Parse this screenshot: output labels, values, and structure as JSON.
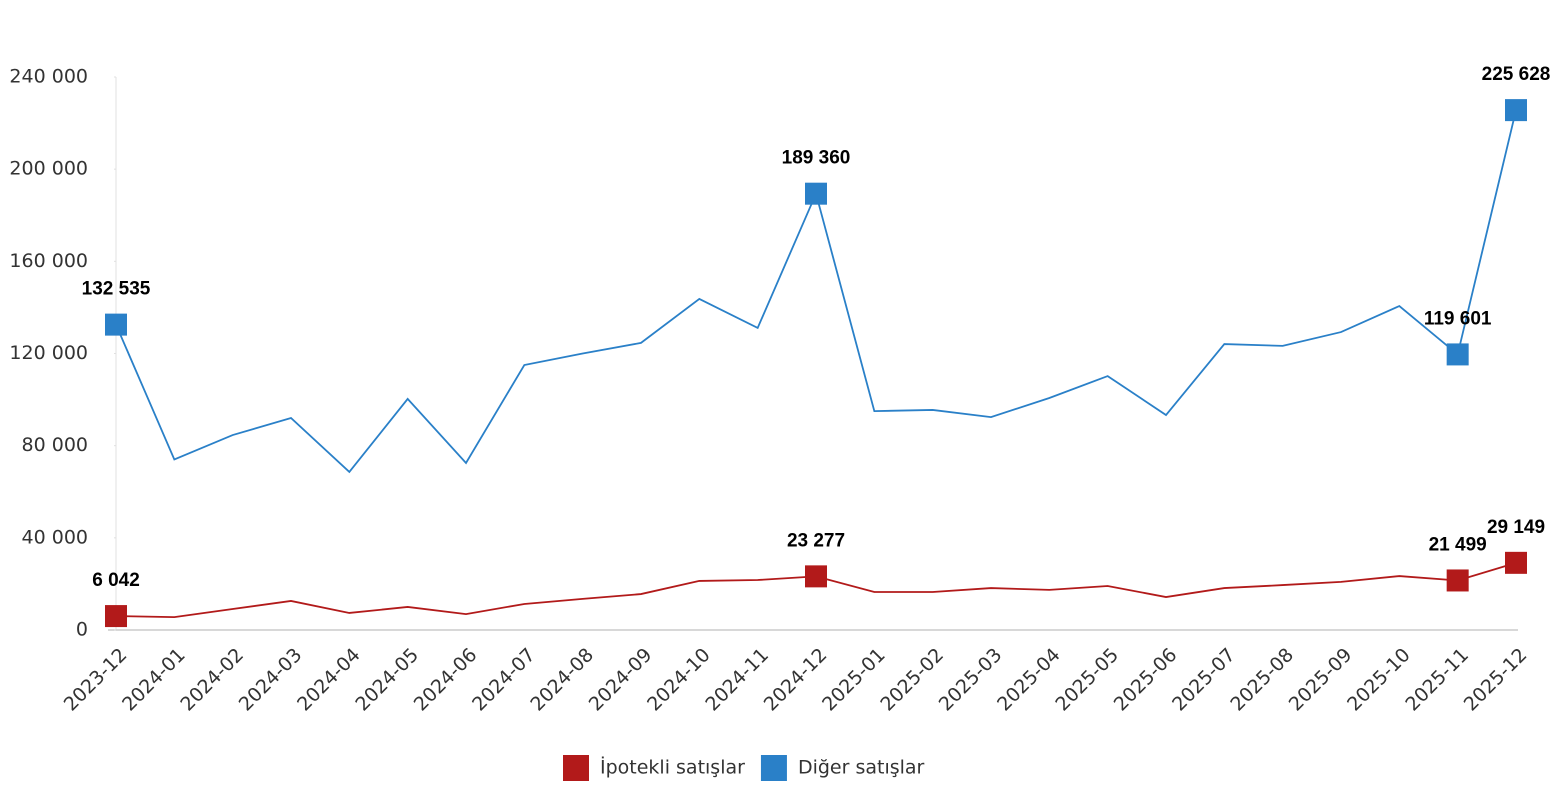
{
  "chart_data": {
    "type": "line",
    "categories": [
      "2023-12",
      "2024-01",
      "2024-02",
      "2024-03",
      "2024-04",
      "2024-05",
      "2024-06",
      "2024-07",
      "2024-08",
      "2024-09",
      "2024-10",
      "2024-11",
      "2024-12",
      "2025-01",
      "2025-02",
      "2025-03",
      "2025-04",
      "2025-05",
      "2025-06",
      "2025-07",
      "2025-08",
      "2025-09",
      "2025-10",
      "2025-11",
      "2025-12"
    ],
    "series": [
      {
        "name": "İpotekli satışlar",
        "color": "#b21a1a",
        "values": [
          6042,
          5600,
          9100,
          12600,
          7400,
          10000,
          6900,
          11300,
          13500,
          15600,
          21300,
          21700,
          23277,
          16500,
          16500,
          18200,
          17400,
          19100,
          14300,
          18200,
          19500,
          20900,
          23400,
          21499,
          29149
        ],
        "value_labels": [
          "6 042",
          null,
          null,
          null,
          null,
          null,
          null,
          null,
          null,
          null,
          null,
          null,
          "23 277",
          null,
          null,
          null,
          null,
          null,
          null,
          null,
          null,
          null,
          null,
          "21 499",
          "29 149"
        ]
      },
      {
        "name": "Diğer satışlar",
        "color": "#2a80c8",
        "values": [
          132535,
          74000,
          84600,
          92000,
          68600,
          100300,
          72500,
          115000,
          120000,
          124600,
          143700,
          131100,
          189360,
          95000,
          95500,
          92400,
          100700,
          110200,
          93300,
          124100,
          123300,
          129300,
          140600,
          119601,
          225628
        ],
        "value_labels": [
          "132 535",
          null,
          null,
          null,
          null,
          null,
          null,
          null,
          null,
          null,
          null,
          null,
          "189 360",
          null,
          null,
          null,
          null,
          null,
          null,
          null,
          null,
          null,
          null,
          "119 601",
          "225 628"
        ]
      }
    ],
    "ylim": [
      0,
      240000
    ],
    "yticks": [
      0,
      {
        "value": 40000,
        "label": "40 000"
      },
      {
        "value": 80000,
        "label": "80 000"
      },
      {
        "value": 120000,
        "label": "120 000"
      },
      {
        "value": 160000,
        "label": "160 000"
      },
      {
        "value": 200000,
        "label": "200 000"
      },
      {
        "value": 240000,
        "label": "240 000"
      }
    ],
    "grid": false,
    "legend": "bottom"
  }
}
